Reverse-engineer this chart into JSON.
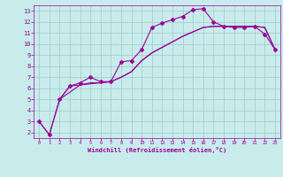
{
  "xlabel": "Windchill (Refroidissement éolien,°C)",
  "bg_color": "#c8ecec",
  "line_color": "#990099",
  "grid_color": "#a0c8c8",
  "xlim": [
    -0.5,
    23.5
  ],
  "ylim": [
    1.5,
    13.5
  ],
  "xticks": [
    0,
    1,
    2,
    3,
    4,
    5,
    6,
    7,
    8,
    9,
    10,
    11,
    12,
    13,
    14,
    15,
    16,
    17,
    18,
    19,
    20,
    21,
    22,
    23
  ],
  "yticks": [
    2,
    3,
    4,
    5,
    6,
    7,
    8,
    9,
    10,
    11,
    12,
    13
  ],
  "line1_x": [
    0,
    1,
    2,
    3,
    4,
    5,
    6,
    7,
    8,
    9,
    10,
    11,
    12,
    13,
    14,
    15,
    16,
    17,
    18,
    19,
    20,
    21,
    22,
    23
  ],
  "line1_y": [
    3.0,
    1.8,
    5.0,
    6.2,
    6.5,
    7.0,
    6.6,
    6.6,
    8.4,
    8.5,
    9.5,
    11.5,
    11.9,
    12.2,
    12.5,
    13.1,
    13.2,
    12.0,
    11.6,
    11.5,
    11.5,
    11.6,
    10.9,
    9.5
  ],
  "line2_x": [
    2,
    4,
    5,
    6,
    7,
    8,
    9,
    10,
    11,
    12,
    13,
    14,
    15,
    16,
    17,
    18,
    19,
    20,
    21,
    22,
    23
  ],
  "line2_y": [
    5.0,
    6.3,
    6.5,
    6.5,
    6.6,
    7.0,
    7.5,
    8.5,
    9.2,
    9.7,
    10.2,
    10.7,
    11.1,
    11.5,
    11.6,
    11.6,
    11.6,
    11.6,
    11.6,
    11.5,
    9.5
  ],
  "line3_x": [
    0,
    1,
    2,
    3,
    4,
    5,
    6,
    7,
    8,
    9,
    10,
    11,
    12,
    13,
    14,
    15,
    16,
    17,
    18,
    19,
    20,
    21,
    22,
    23
  ],
  "line3_y": [
    3.0,
    1.8,
    5.0,
    6.2,
    6.3,
    6.4,
    6.5,
    6.6,
    7.0,
    7.5,
    8.5,
    9.2,
    9.7,
    10.2,
    10.7,
    11.1,
    11.5,
    11.6,
    11.6,
    11.6,
    11.6,
    11.6,
    11.5,
    9.5
  ]
}
